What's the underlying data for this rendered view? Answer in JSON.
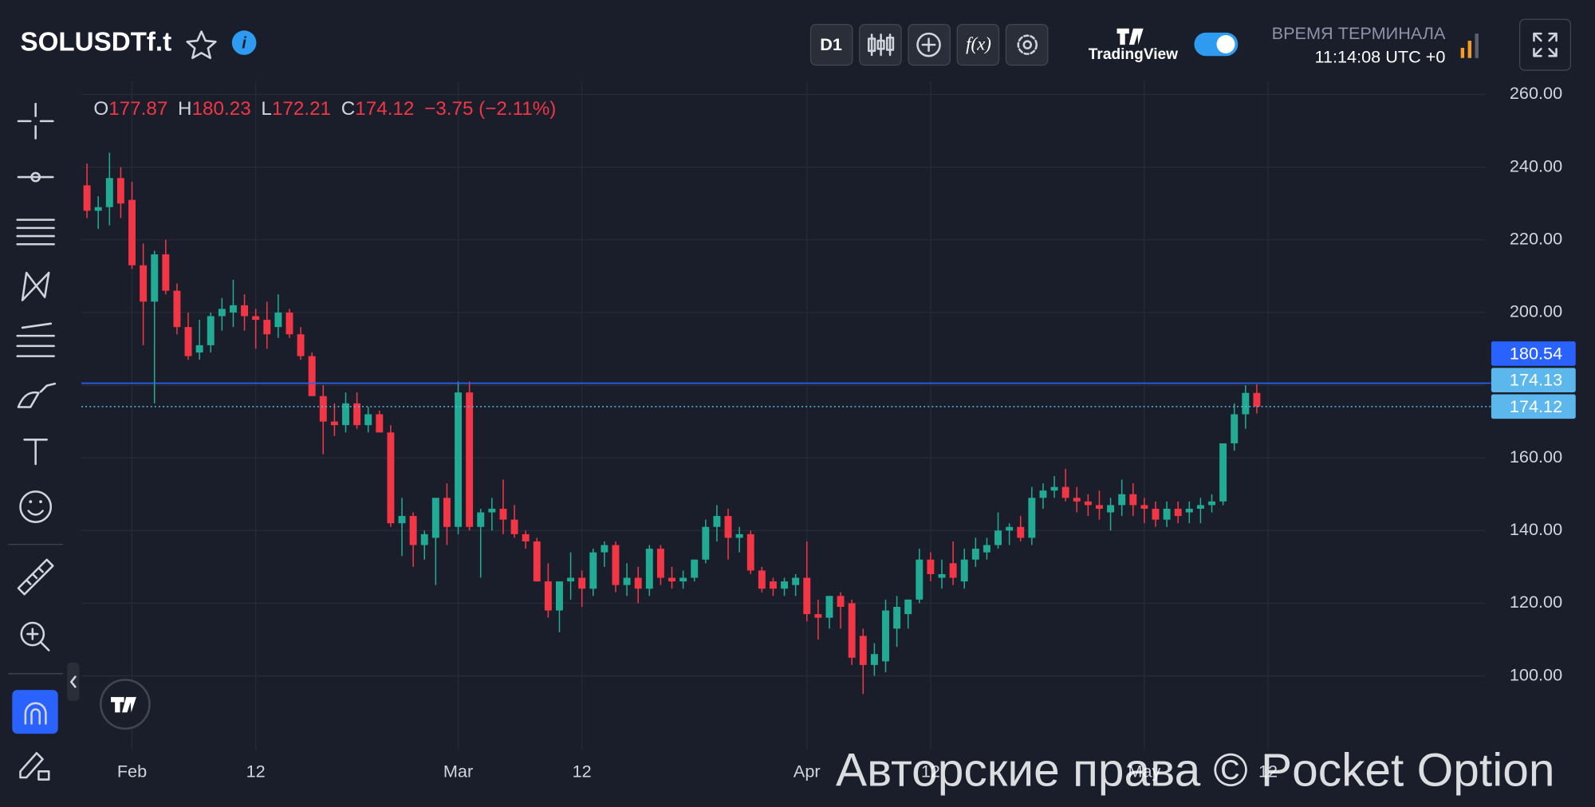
{
  "header": {
    "symbol": "SOLUSDTf.t",
    "timeframe": "D1",
    "brand": "TradingView",
    "terminal_time_label": "ВРЕМЯ ТЕРМИНАЛА",
    "terminal_time": "11:14:08 UTC +0"
  },
  "legend": {
    "o_label": "O",
    "open": 177.87,
    "h_label": "H",
    "high": 180.23,
    "l_label": "L",
    "low": 172.21,
    "c_label": "C",
    "close": 174.12,
    "change": "−3.75 (−2.11%)"
  },
  "watermark": "Авторские права © Pocket Option",
  "chart_data": {
    "type": "candlestick",
    "up_color": "#22ab94",
    "down_color": "#f23645",
    "grid": true,
    "xlim": [
      -0.5,
      124.3
    ],
    "ylim": [
      79.6,
      263.6
    ],
    "xticks": [
      {
        "value": 4,
        "label": "Feb"
      },
      {
        "value": 15,
        "label": "12"
      },
      {
        "value": 33,
        "label": "Mar"
      },
      {
        "value": 44,
        "label": "12"
      },
      {
        "value": 64,
        "label": "Apr"
      },
      {
        "value": 75,
        "label": "12"
      },
      {
        "value": 94,
        "label": "May"
      },
      {
        "value": 105,
        "label": "12"
      }
    ],
    "yticks": [
      {
        "value": 100,
        "label": "100.00"
      },
      {
        "value": 120,
        "label": "120.00"
      },
      {
        "value": 140,
        "label": "140.00"
      },
      {
        "value": 160,
        "label": "160.00"
      },
      {
        "value": 180,
        "label": "180.00"
      },
      {
        "value": 200,
        "label": "200.00"
      },
      {
        "value": 220,
        "label": "220.00"
      },
      {
        "value": 240,
        "label": "240.00"
      },
      {
        "value": 260,
        "label": "260.00"
      }
    ],
    "price_lines": [
      {
        "value": 180.54,
        "color": "#2962ff",
        "style": "solid"
      },
      {
        "value": 174.13,
        "color": "#5cb8ec",
        "style": "none"
      },
      {
        "value": 174.12,
        "color": "#5cb8ec",
        "style": "dotted"
      }
    ],
    "open": [
      235,
      228,
      229,
      237,
      231,
      213,
      203,
      216,
      206,
      196,
      189,
      191,
      199,
      200,
      202,
      199,
      198,
      196,
      200,
      194,
      188,
      177,
      170,
      169,
      175,
      169,
      172,
      167,
      142,
      144,
      136,
      138,
      149,
      141,
      178,
      141,
      145,
      146,
      143,
      139,
      137,
      126,
      118,
      126,
      127,
      124,
      134,
      136,
      125,
      127,
      124,
      135,
      127,
      126,
      127,
      132,
      141,
      144,
      138,
      139,
      129,
      126,
      124,
      125,
      127,
      117,
      116,
      122,
      120,
      111,
      103,
      104,
      113,
      117,
      121,
      132,
      127,
      131,
      126,
      132,
      134,
      136,
      140,
      141,
      138,
      149,
      151,
      152,
      149,
      148,
      147,
      145,
      147,
      150,
      147,
      146,
      143,
      146,
      145,
      146,
      147,
      148,
      164,
      172,
      177.87
    ],
    "high": [
      241,
      232,
      244,
      240,
      236,
      219,
      217,
      220,
      208,
      200,
      198,
      200,
      204,
      209,
      205,
      201,
      203,
      205,
      201,
      196,
      189,
      180,
      175,
      178,
      178,
      174,
      173,
      169,
      149,
      145,
      140,
      148,
      153,
      181,
      181,
      146,
      149,
      154,
      147,
      140,
      138,
      131,
      126,
      134,
      129,
      135,
      137,
      137,
      131,
      130,
      136,
      136,
      130,
      129,
      132,
      143,
      147,
      146,
      141,
      140,
      130,
      127,
      127,
      128,
      137,
      121,
      122,
      123,
      121,
      113,
      109,
      121,
      122,
      121,
      135,
      134,
      132,
      137,
      135,
      138,
      138,
      145,
      142,
      144,
      152,
      153,
      155,
      157,
      152,
      150,
      151,
      149,
      154,
      153,
      149,
      148,
      148,
      148,
      148,
      149,
      150,
      164,
      175,
      180,
      180.23
    ],
    "low": [
      226,
      223,
      224,
      226,
      212,
      191,
      175,
      205,
      194,
      187,
      187,
      189,
      195,
      196,
      195,
      190,
      190,
      193,
      193,
      187,
      177,
      161,
      166,
      167,
      168,
      167,
      167,
      141,
      133,
      130,
      132,
      125,
      136,
      139,
      140,
      127,
      140,
      139,
      138,
      135,
      126,
      116,
      112,
      121,
      119,
      122,
      130,
      123,
      122,
      120,
      122,
      125,
      124,
      124,
      126,
      131,
      137,
      132,
      134,
      128,
      123,
      122,
      122,
      122,
      115,
      110,
      113,
      113,
      103,
      95,
      100,
      101,
      108,
      113,
      120,
      126,
      124,
      125,
      124,
      130,
      132,
      135,
      136,
      137,
      136,
      146,
      149,
      148,
      145,
      144,
      143,
      140,
      144,
      144,
      142,
      141,
      141,
      142,
      142,
      142,
      145,
      147,
      162,
      168,
      172.21
    ],
    "close": [
      228,
      229,
      237,
      230,
      213,
      203,
      216,
      206,
      196,
      188,
      191,
      199,
      201,
      202,
      199,
      198,
      194,
      200,
      194,
      188,
      177,
      170,
      169,
      175,
      169,
      172,
      167,
      142,
      144,
      136,
      139,
      149,
      141,
      178,
      141,
      145,
      146,
      143,
      139,
      137,
      126,
      118,
      126,
      127,
      124,
      134,
      136,
      125,
      127,
      124,
      135,
      127,
      126,
      127,
      132,
      141,
      144,
      138,
      139,
      129,
      124,
      124,
      126,
      127,
      117,
      116,
      122,
      119,
      105,
      103,
      106,
      118,
      119,
      121,
      132,
      128,
      128,
      127,
      132,
      135,
      136,
      140,
      141,
      138,
      149,
      151,
      152,
      149,
      148,
      147,
      146,
      147,
      150,
      147,
      146,
      143,
      146,
      144,
      146,
      147,
      148,
      164,
      172,
      177.87,
      174.12
    ]
  }
}
